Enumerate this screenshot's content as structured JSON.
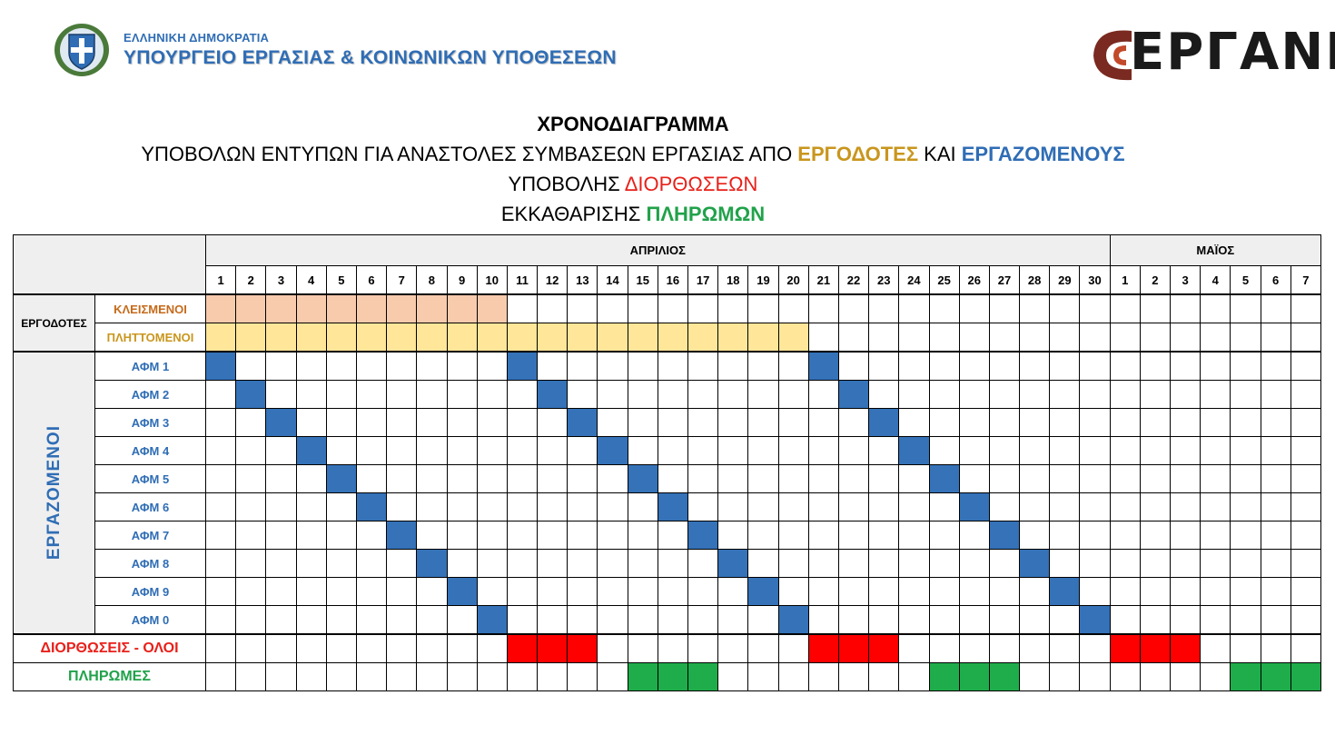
{
  "header": {
    "ministry_small": "ΕΛΛΗΝΙΚΗ ΔΗΜΟΚΡΑΤΙΑ",
    "ministry_big": "ΥΠΟΥΡΓΕΙΟ ΕΡΓΑΣΙΑΣ & ΚΟΙΝΩΝΙΚΩΝ ΥΠΟΘΕΣΕΩΝ",
    "logo_text": "ΕΡΓΑΝΗ",
    "emblem_icon": "greek-coat-of-arms-icon"
  },
  "titles": {
    "line1": "ΧΡΟΝΟΔΙΑΓΡΑΜΜΑ",
    "line2_a": "ΥΠΟΒΟΛΩΝ ΕΝΤΥΠΩΝ ΓΙΑ ΑΝΑΣΤΟΛΕΣ ΣΥΜΒΑΣΕΩΝ ΕΡΓΑΣΙΑΣ ΑΠΟ ",
    "line2_b": "ΕΡΓΟΔΟΤΕΣ",
    "line2_c": " ΚΑΙ ",
    "line2_d": "ΕΡΓΑΖΟΜΕΝΟΥΣ",
    "line3_a": "ΥΠΟΒΟΛΗΣ ",
    "line3_b": "ΔΙΟΡΘΩΣΕΩΝ",
    "line4_a": "ΕΚΚΑΘΑΡΙΣΗΣ ",
    "line4_b": "ΠΛΗΡΩΜΩΝ"
  },
  "colors": {
    "blue": "#2f6db5",
    "gold": "#c9961d",
    "red": "#e8201a",
    "green": "#21a24a",
    "closed_fill": "#f8cbad",
    "fully_fill": "#ffe699",
    "afm_fill": "#3572b8",
    "corr_fill": "#ff0000",
    "pay_fill": "#1fad4b"
  },
  "table": {
    "months": [
      {
        "label": "ΑΠΡΙΛΙΟΣ",
        "days": 30
      },
      {
        "label": "ΜΑΪΟΣ",
        "days": 7
      }
    ],
    "employers_label": "ΕΡΓΟΔΟΤΕΣ",
    "employees_label": "ΕΡΓΑΖΟΜΕΝΟΙ",
    "employer_rows": [
      {
        "label": "ΚΛΕΙΣΜΕΝΟΙ",
        "cls": "closed",
        "fill": "f-salmon",
        "cols": [
          1,
          2,
          3,
          4,
          5,
          6,
          7,
          8,
          9,
          10
        ]
      },
      {
        "label": "ΠΛΗΤΤΟΜΕΝΟΙ",
        "cls": "fully",
        "fill": "f-yellow",
        "cols": [
          1,
          2,
          3,
          4,
          5,
          6,
          7,
          8,
          9,
          10,
          11,
          12,
          13,
          14,
          15,
          16,
          17,
          18,
          19,
          20
        ]
      }
    ],
    "employee_rows": [
      {
        "label": "ΑΦΜ 1",
        "cols": [
          1,
          11,
          21
        ]
      },
      {
        "label": "ΑΦΜ 2",
        "cols": [
          2,
          12,
          22
        ]
      },
      {
        "label": "ΑΦΜ 3",
        "cols": [
          3,
          13,
          23
        ]
      },
      {
        "label": "ΑΦΜ 4",
        "cols": [
          4,
          14,
          24
        ]
      },
      {
        "label": "ΑΦΜ 5",
        "cols": [
          5,
          15,
          25
        ]
      },
      {
        "label": "ΑΦΜ 6",
        "cols": [
          6,
          16,
          26
        ]
      },
      {
        "label": "ΑΦΜ 7",
        "cols": [
          7,
          17,
          27
        ]
      },
      {
        "label": "ΑΦΜ 8",
        "cols": [
          8,
          18,
          28
        ]
      },
      {
        "label": "ΑΦΜ 9",
        "cols": [
          9,
          19,
          29
        ]
      },
      {
        "label": "ΑΦΜ 0",
        "cols": [
          10,
          20,
          30
        ]
      }
    ],
    "corrections": {
      "label": "ΔΙΟΡΘΩΣΕΙΣ - ΟΛΟΙ",
      "cols": [
        11,
        12,
        13,
        21,
        22,
        23,
        31,
        32,
        33
      ]
    },
    "payments": {
      "label": "ΠΛΗΡΩΜΕΣ",
      "cols": [
        15,
        16,
        17,
        25,
        26,
        27,
        35,
        36,
        37
      ]
    }
  }
}
